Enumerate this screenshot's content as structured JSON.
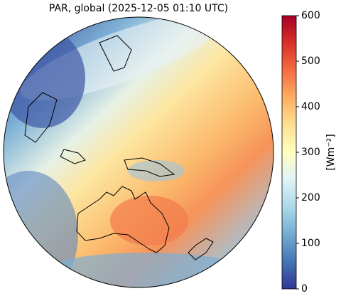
{
  "map": {
    "title": "PAR, global (2025-12-05 01:10 UTC)",
    "colorbar": {
      "label": "[Wm⁻²]",
      "vlim": [
        0,
        600
      ],
      "ticks": [
        0,
        100,
        200,
        300,
        400,
        500,
        600
      ],
      "colors": [
        "#313695",
        "#4575b4",
        "#74add1",
        "#abd9e9",
        "#e0f3f8",
        "#ffffbf",
        "#fee090",
        "#fdae61",
        "#f46d43",
        "#d73027",
        "#a50026"
      ]
    }
  }
}
